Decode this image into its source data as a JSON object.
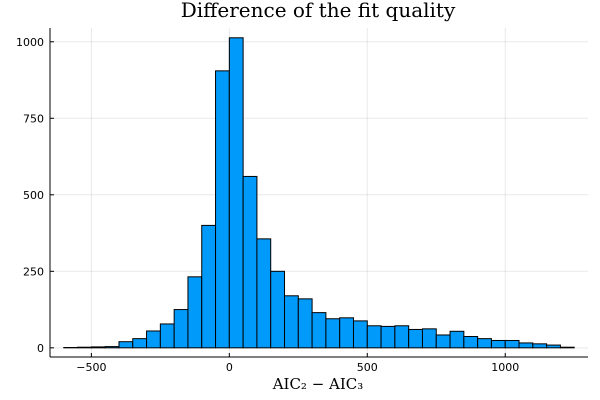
{
  "chart_data": {
    "type": "bar",
    "subtype": "histogram",
    "title": "Difference of the fit quality",
    "xlabel": "AIC₂ − AIC₃",
    "ylabel": "",
    "legend": "none",
    "grid": true,
    "color": "#009AFA",
    "xlim": [
      -650,
      1300
    ],
    "ylim": [
      -30,
      1045
    ],
    "bin_width": 50,
    "bins_start": [
      -600,
      -550,
      -500,
      -450,
      -400,
      -350,
      -300,
      -250,
      -200,
      -150,
      -100,
      -50,
      0,
      50,
      100,
      150,
      200,
      250,
      300,
      350,
      400,
      450,
      500,
      550,
      600,
      650,
      700,
      750,
      800,
      850,
      900,
      950,
      1000,
      1050,
      1100,
      1150,
      1200
    ],
    "values": [
      1,
      2,
      3,
      4,
      20,
      30,
      55,
      78,
      125,
      232,
      400,
      905,
      1013,
      560,
      356,
      250,
      170,
      160,
      115,
      95,
      98,
      88,
      72,
      70,
      72,
      60,
      62,
      42,
      54,
      37,
      30,
      24,
      24,
      16,
      13,
      9,
      2
    ],
    "xticks": [
      -500,
      0,
      500,
      1000
    ],
    "xtick_labels": [
      "−500",
      "0",
      "500",
      "1000"
    ],
    "yticks": [
      0,
      250,
      500,
      750,
      1000
    ],
    "ytick_labels": [
      "0",
      "250",
      "500",
      "750",
      "1000"
    ]
  }
}
